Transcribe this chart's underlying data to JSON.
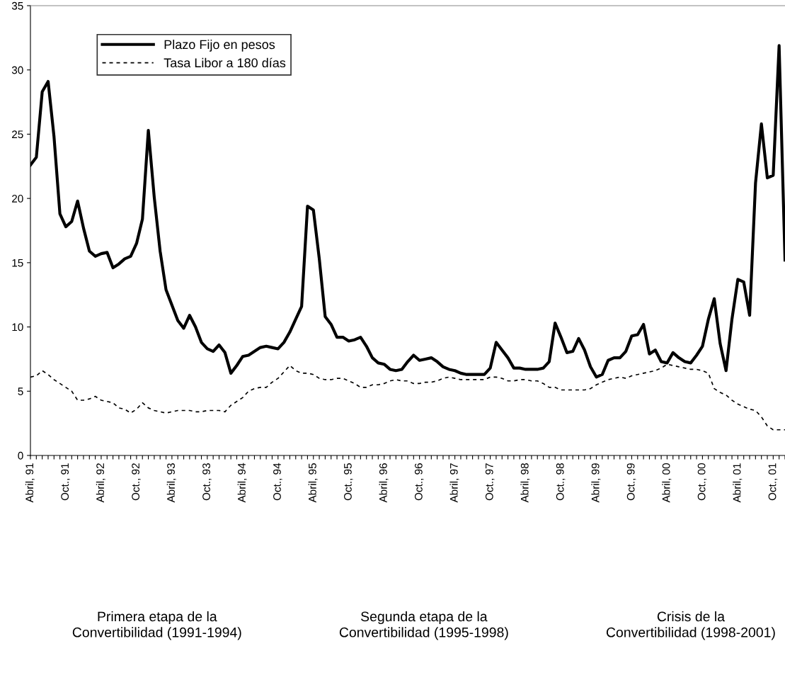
{
  "chart_data": {
    "type": "line",
    "categories": [
      "Abril, 91",
      null,
      null,
      null,
      null,
      null,
      "Oct., 91",
      null,
      null,
      null,
      null,
      null,
      "Abril, 92",
      null,
      null,
      null,
      null,
      null,
      "Oct., 92",
      null,
      null,
      null,
      null,
      null,
      "Abril, 93",
      null,
      null,
      null,
      null,
      null,
      "Oct., 93",
      null,
      null,
      null,
      null,
      null,
      "Abril, 94",
      null,
      null,
      null,
      null,
      null,
      "Oct., 94",
      null,
      null,
      null,
      null,
      null,
      "Abril, 95",
      null,
      null,
      null,
      null,
      null,
      "Oct., 95",
      null,
      null,
      null,
      null,
      null,
      "Abril, 96",
      null,
      null,
      null,
      null,
      null,
      "Oct., 96",
      null,
      null,
      null,
      null,
      null,
      "Abril, 97",
      null,
      null,
      null,
      null,
      null,
      "Oct., 97",
      null,
      null,
      null,
      null,
      null,
      "Abril, 98",
      null,
      null,
      null,
      null,
      null,
      "Oct., 98",
      null,
      null,
      null,
      null,
      null,
      "Abril, 99",
      null,
      null,
      null,
      null,
      null,
      "Oct., 99",
      null,
      null,
      null,
      null,
      null,
      "Abril, 00",
      null,
      null,
      null,
      null,
      null,
      "Oct., 00",
      null,
      null,
      null,
      null,
      null,
      "Abril, 01",
      null,
      null,
      null,
      null,
      null,
      "Oct., 01",
      null,
      null
    ],
    "series": [
      {
        "name": "Plazo Fijo en pesos",
        "color": "#000000",
        "line_style": "solid",
        "values": [
          22.6,
          23.2,
          28.3,
          29.1,
          24.8,
          18.8,
          17.8,
          18.2,
          19.8,
          17.7,
          15.9,
          15.5,
          15.7,
          15.8,
          14.6,
          14.9,
          15.3,
          15.5,
          16.5,
          18.4,
          25.3,
          20.1,
          15.9,
          12.9,
          11.7,
          10.5,
          9.9,
          10.9,
          10.0,
          8.8,
          8.3,
          8.1,
          8.6,
          8.0,
          6.4,
          7.0,
          7.7,
          7.8,
          8.1,
          8.4,
          8.5,
          8.4,
          8.3,
          8.8,
          9.6,
          10.6,
          11.6,
          19.4,
          19.1,
          15.3,
          10.8,
          10.2,
          9.2,
          9.2,
          8.9,
          9.0,
          9.2,
          8.5,
          7.6,
          7.2,
          7.1,
          6.7,
          6.6,
          6.7,
          7.3,
          7.8,
          7.4,
          7.5,
          7.6,
          7.3,
          6.9,
          6.7,
          6.6,
          6.4,
          6.3,
          6.3,
          6.3,
          6.3,
          6.8,
          8.8,
          8.2,
          7.6,
          6.8,
          6.8,
          6.7,
          6.7,
          6.7,
          6.8,
          7.3,
          10.3,
          9.2,
          8.0,
          8.1,
          9.1,
          8.2,
          6.9,
          6.1,
          6.3,
          7.4,
          7.6,
          7.6,
          8.1,
          9.3,
          9.4,
          10.2,
          7.9,
          8.2,
          7.3,
          7.2,
          8.0,
          7.6,
          7.3,
          7.2,
          7.8,
          8.5,
          10.6,
          12.2,
          8.7,
          6.6,
          10.6,
          13.7,
          13.5,
          10.9,
          21.2,
          25.8,
          21.6,
          21.8,
          31.9,
          15.2
        ]
      },
      {
        "name": "Tasa Libor a 180 días",
        "color": "#000000",
        "line_style": "dashed",
        "values": [
          6.1,
          6.2,
          6.6,
          6.3,
          5.9,
          5.6,
          5.3,
          5.0,
          4.3,
          4.3,
          4.4,
          4.6,
          4.3,
          4.2,
          4.1,
          3.7,
          3.6,
          3.3,
          3.6,
          4.1,
          3.7,
          3.5,
          3.4,
          3.3,
          3.4,
          3.5,
          3.5,
          3.5,
          3.4,
          3.4,
          3.5,
          3.5,
          3.5,
          3.4,
          3.9,
          4.2,
          4.5,
          5.0,
          5.2,
          5.3,
          5.3,
          5.7,
          6.0,
          6.5,
          7.0,
          6.6,
          6.4,
          6.4,
          6.3,
          6.0,
          5.9,
          5.9,
          6.0,
          6.0,
          5.8,
          5.6,
          5.3,
          5.3,
          5.5,
          5.5,
          5.6,
          5.8,
          5.9,
          5.8,
          5.8,
          5.6,
          5.6,
          5.7,
          5.7,
          5.8,
          6.0,
          6.1,
          6.0,
          5.9,
          5.9,
          5.9,
          5.9,
          5.9,
          6.1,
          6.1,
          6.0,
          5.8,
          5.8,
          5.9,
          5.9,
          5.8,
          5.8,
          5.6,
          5.3,
          5.3,
          5.1,
          5.1,
          5.1,
          5.1,
          5.1,
          5.2,
          5.5,
          5.7,
          5.9,
          6.0,
          6.1,
          6.0,
          6.2,
          6.3,
          6.4,
          6.5,
          6.6,
          6.8,
          7.1,
          7.0,
          6.9,
          6.8,
          6.7,
          6.7,
          6.6,
          6.4,
          5.2,
          4.9,
          4.7,
          4.3,
          4.0,
          3.8,
          3.6,
          3.5,
          3.0,
          2.3,
          2.0,
          2.0,
          2.0
        ]
      }
    ],
    "ylim": [
      0,
      35
    ],
    "yticks": [
      0,
      5,
      10,
      15,
      20,
      25,
      30,
      35
    ],
    "grid": false,
    "legend": "top left",
    "marker": "none",
    "annotations": [
      "Primera etapa de la\nConvertibilidad (1991-1994)",
      "Segunda etapa de la\nConvertibilidad (1995-1998)",
      "Crisis de la\nConvertibilidad (1998-2001)"
    ]
  }
}
